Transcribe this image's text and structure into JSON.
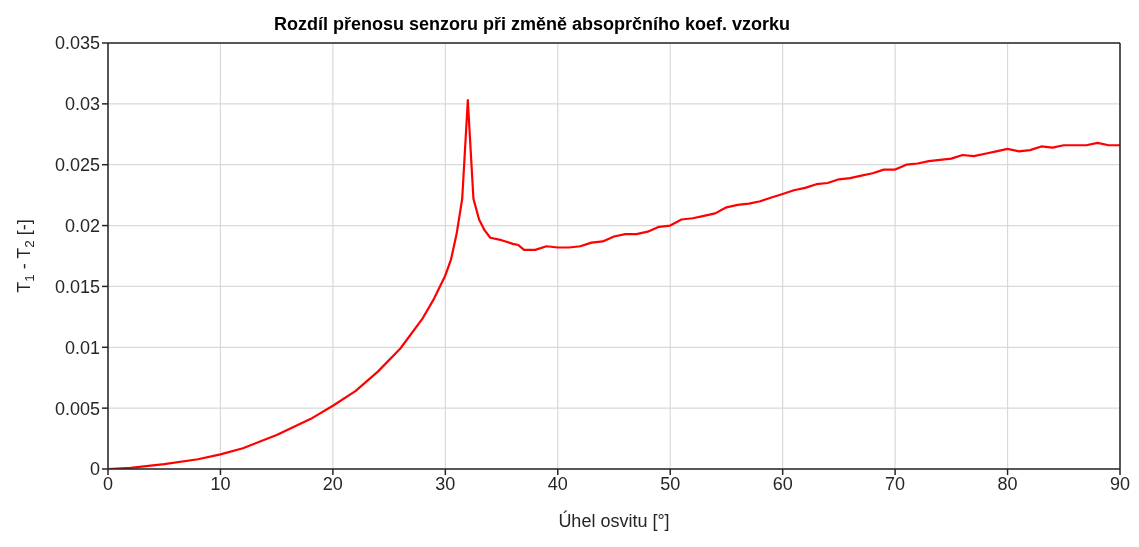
{
  "chart_data": {
    "type": "line",
    "title": "Rozdíl přenosu senzoru při změně absoprčního koef. vzorku",
    "xlabel": "Úhel osvitu [°]",
    "ylabel": "T$_{1}$ - T$_{2}$ [-]",
    "x": [
      0,
      2,
      5,
      8,
      10,
      12,
      15,
      18,
      20,
      22,
      24,
      26,
      28,
      29,
      30,
      30.5,
      31,
      31.5,
      32,
      32.5,
      33,
      33.5,
      34,
      35,
      36,
      36.5,
      37,
      38,
      39,
      40,
      41,
      42,
      43,
      44,
      45,
      46,
      47,
      48,
      49,
      50,
      51,
      52,
      53,
      54,
      55,
      56,
      57,
      58,
      59,
      60,
      61,
      62,
      63,
      64,
      65,
      66,
      67,
      68,
      69,
      70,
      71,
      72,
      73,
      74,
      75,
      76,
      77,
      78,
      79,
      80,
      81,
      82,
      83,
      84,
      85,
      86,
      87,
      88,
      89,
      90
    ],
    "series": [
      {
        "color": "#ff0000",
        "values": [
          0,
          0.0001,
          0.0004,
          0.0008,
          0.0012,
          0.0017,
          0.0028,
          0.0041,
          0.0052,
          0.0064,
          0.008,
          0.0099,
          0.0124,
          0.014,
          0.0159,
          0.0172,
          0.0193,
          0.0222,
          0.0303,
          0.0222,
          0.0205,
          0.0196,
          0.019,
          0.0188,
          0.0185,
          0.0184,
          0.018,
          0.018,
          0.0183,
          0.0182,
          0.0182,
          0.0183,
          0.0186,
          0.0187,
          0.0191,
          0.0193,
          0.0193,
          0.0195,
          0.0199,
          0.02,
          0.0205,
          0.0206,
          0.0208,
          0.021,
          0.0215,
          0.0217,
          0.0218,
          0.022,
          0.0223,
          0.0226,
          0.0229,
          0.0231,
          0.0234,
          0.0235,
          0.0238,
          0.0239,
          0.0241,
          0.0243,
          0.0246,
          0.0246,
          0.025,
          0.0251,
          0.0253,
          0.0254,
          0.0255,
          0.0258,
          0.0257,
          0.0259,
          0.0261,
          0.0263,
          0.0261,
          0.0262,
          0.0265,
          0.0264,
          0.0266,
          0.0266,
          0.0266,
          0.0268,
          0.0266,
          0.0266
        ]
      }
    ],
    "xlim": [
      0,
      90
    ],
    "xticks": [
      0,
      10,
      20,
      30,
      40,
      50,
      60,
      70,
      80,
      90
    ],
    "ylim": [
      0,
      0.035
    ],
    "yticks": [
      0,
      0.005,
      0.01,
      0.015,
      0.02,
      0.025,
      0.03,
      0.035
    ],
    "grid": true,
    "marker": "none",
    "line_style": "solid",
    "legend": false
  }
}
